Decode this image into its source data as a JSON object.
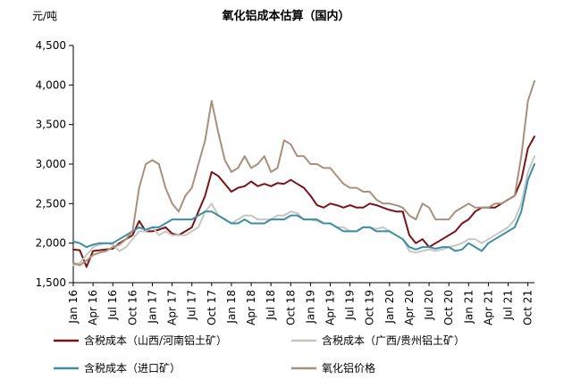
{
  "chart_data": {
    "type": "line",
    "title": "氧化铝成本估算（国内）",
    "ylabel": "元/吨",
    "xlabel": "",
    "ylim": [
      1500,
      4500
    ],
    "yticks": [
      "1,500",
      "2,000",
      "2,500",
      "3,000",
      "3,500",
      "4,000",
      "4,500"
    ],
    "xticks": [
      "Jan 16",
      "Apr 16",
      "Jul 16",
      "Oct 16",
      "Jan 17",
      "Apr 17",
      "Jul 17",
      "Oct 17",
      "Jan 18",
      "Apr 18",
      "Jul 18",
      "Oct 18",
      "Jan 19",
      "Apr 19",
      "Jul 19",
      "Oct 19",
      "Jan 20",
      "Apr 20",
      "Jul 20",
      "Oct 20",
      "Jan 21",
      "Apr 21",
      "Jul 21",
      "Oct 21"
    ],
    "x": [
      2016.0,
      2016.083,
      2016.167,
      2016.25,
      2016.333,
      2016.417,
      2016.5,
      2016.583,
      2016.667,
      2016.75,
      2016.833,
      2016.917,
      2017.0,
      2017.083,
      2017.167,
      2017.25,
      2017.333,
      2017.417,
      2017.5,
      2017.583,
      2017.667,
      2017.75,
      2017.833,
      2017.917,
      2018.0,
      2018.083,
      2018.167,
      2018.25,
      2018.333,
      2018.417,
      2018.5,
      2018.583,
      2018.667,
      2018.75,
      2018.833,
      2018.917,
      2019.0,
      2019.083,
      2019.167,
      2019.25,
      2019.333,
      2019.417,
      2019.5,
      2019.583,
      2019.667,
      2019.75,
      2019.833,
      2019.917,
      2020.0,
      2020.083,
      2020.167,
      2020.25,
      2020.333,
      2020.417,
      2020.5,
      2020.583,
      2020.667,
      2020.75,
      2020.833,
      2020.917,
      2021.0,
      2021.083,
      2021.167,
      2021.25,
      2021.333,
      2021.417,
      2021.5,
      2021.583,
      2021.667,
      2021.75,
      2021.833
    ],
    "series": [
      {
        "name": "含税成本（山西/河南铝土矿）",
        "color": "#7b1318",
        "values": [
          1920,
          1910,
          1700,
          1900,
          1910,
          1920,
          1930,
          2000,
          2050,
          2100,
          2280,
          2150,
          2150,
          2170,
          2200,
          2120,
          2100,
          2150,
          2200,
          2400,
          2600,
          2900,
          2850,
          2750,
          2650,
          2700,
          2720,
          2780,
          2720,
          2750,
          2720,
          2760,
          2750,
          2800,
          2750,
          2700,
          2600,
          2480,
          2450,
          2500,
          2480,
          2450,
          2480,
          2450,
          2450,
          2500,
          2480,
          2450,
          2420,
          2400,
          2400,
          2100,
          2000,
          2050,
          1950,
          2000,
          2050,
          2100,
          2150,
          2250,
          2300,
          2400,
          2450,
          2450,
          2450,
          2500,
          2550,
          2600,
          2800,
          3200,
          3350
        ]
      },
      {
        "name": "含税成本（广西/贵州铝土矿）",
        "color": "#c8c6c1",
        "values": [
          1720,
          1750,
          1850,
          1950,
          1980,
          2000,
          1980,
          1900,
          1950,
          2050,
          2150,
          2150,
          2200,
          2100,
          2150,
          2100,
          2100,
          2100,
          2150,
          2200,
          2400,
          2500,
          2350,
          2300,
          2250,
          2300,
          2350,
          2350,
          2300,
          2300,
          2300,
          2350,
          2350,
          2400,
          2380,
          2300,
          2300,
          2280,
          2250,
          2250,
          2200,
          2200,
          2150,
          2150,
          2200,
          2200,
          2180,
          2200,
          2150,
          2100,
          2050,
          1900,
          1880,
          1900,
          1920,
          1900,
          1920,
          1950,
          1970,
          2000,
          2050,
          2050,
          2000,
          2050,
          2100,
          2150,
          2200,
          2300,
          2500,
          2900,
          3100
        ]
      },
      {
        "name": "含税成本（进口矿）",
        "color": "#3d8ea1",
        "values": [
          2020,
          2000,
          1950,
          1980,
          2000,
          2000,
          2000,
          2050,
          2100,
          2150,
          2200,
          2170,
          2200,
          2200,
          2250,
          2300,
          2300,
          2300,
          2300,
          2350,
          2400,
          2400,
          2350,
          2300,
          2250,
          2250,
          2300,
          2250,
          2250,
          2250,
          2300,
          2300,
          2300,
          2350,
          2350,
          2300,
          2300,
          2300,
          2250,
          2250,
          2200,
          2150,
          2150,
          2150,
          2200,
          2200,
          2150,
          2150,
          2150,
          2100,
          2050,
          1950,
          1920,
          1950,
          1950,
          1930,
          1950,
          1950,
          1900,
          1920,
          2000,
          1950,
          1900,
          2000,
          2050,
          2100,
          2150,
          2200,
          2400,
          2800,
          3000
        ]
      },
      {
        "name": "氧化铝价格",
        "color": "#a9907a",
        "values": [
          1750,
          1720,
          1780,
          1850,
          1880,
          1900,
          1950,
          1980,
          2050,
          2150,
          2700,
          3000,
          3050,
          3000,
          2700,
          2500,
          2400,
          2600,
          2700,
          3000,
          3300,
          3800,
          3400,
          3050,
          2900,
          2950,
          3100,
          2950,
          3000,
          3100,
          2900,
          2950,
          3300,
          3250,
          3100,
          3100,
          3000,
          3000,
          2950,
          2950,
          2850,
          2750,
          2700,
          2700,
          2650,
          2650,
          2550,
          2500,
          2500,
          2480,
          2450,
          2350,
          2300,
          2500,
          2450,
          2300,
          2300,
          2300,
          2400,
          2450,
          2500,
          2450,
          2450,
          2450,
          2500,
          2500,
          2550,
          2600,
          3100,
          3800,
          4050
        ]
      }
    ],
    "legend": "bottom",
    "grid": false
  }
}
